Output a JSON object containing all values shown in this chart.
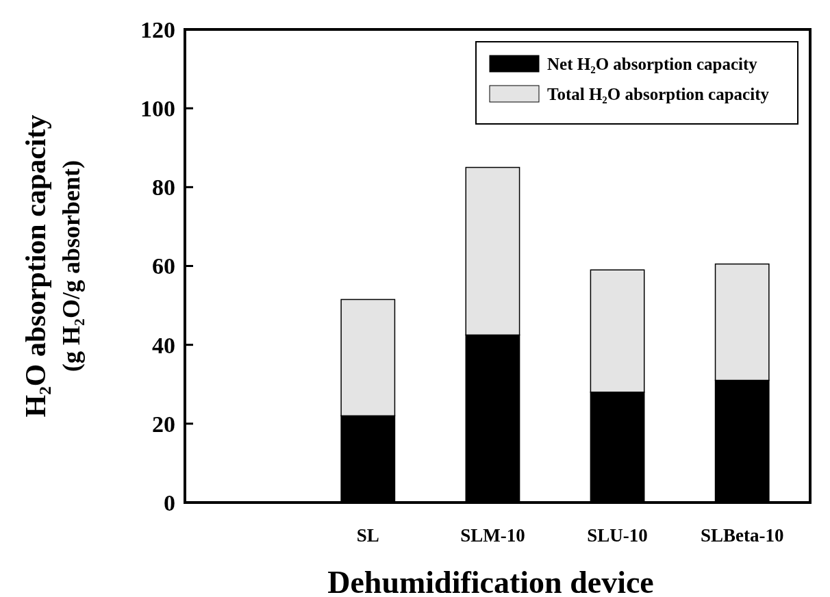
{
  "chart_data": {
    "type": "bar",
    "stacked": true,
    "xlabel": "Dehumidification device",
    "ylabel": "H₂O absorption capacity\n(g H₂O/g absorbent)",
    "categories": [
      "SL",
      "SLM-10",
      "SLU-10",
      "SLBeta-10"
    ],
    "series": [
      {
        "name": "Net H₂O absorption capacity",
        "color": "#000000",
        "values": [
          22,
          42.5,
          28,
          31
        ]
      },
      {
        "name": "Total H₂O absorption capacity",
        "color": "#e4e4e4",
        "values": [
          29.5,
          42.5,
          31,
          29.5
        ]
      }
    ],
    "ylim": [
      0,
      120
    ],
    "yticks": [
      0,
      20,
      40,
      60,
      80,
      100,
      120
    ],
    "grid": false,
    "legend": "top right"
  }
}
